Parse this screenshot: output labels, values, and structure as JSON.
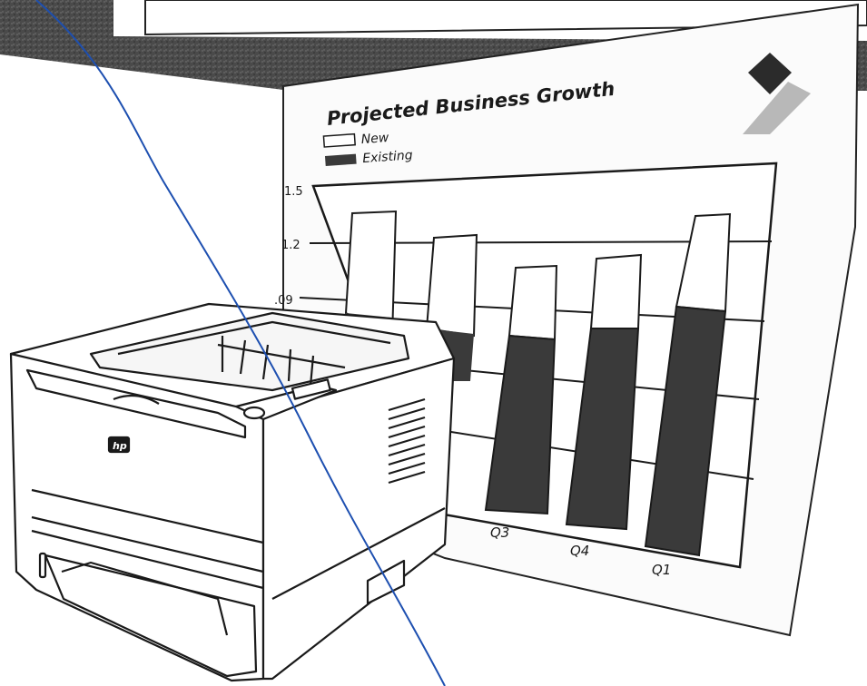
{
  "sheet": {
    "title": "Projected Business Growth",
    "legend": [
      {
        "label": "New",
        "color": "#ffffff"
      },
      {
        "label": "Existing",
        "color": "#3a3a3a"
      }
    ]
  },
  "chart_data": {
    "type": "bar",
    "title": "Projected Business Growth",
    "stacked": true,
    "y_ticks": [
      "1.5",
      "1.2",
      ".09"
    ],
    "categories_visible": [
      "Q3",
      "Q4",
      "Q1"
    ],
    "series": [
      {
        "name": "Existing",
        "color": "#3a3a3a"
      },
      {
        "name": "New",
        "color": "#ffffff"
      }
    ],
    "grid": true,
    "legend_position": "top-left"
  },
  "printer": {
    "logo_text": "hp"
  },
  "colors": {
    "annotation_line": "#1d4fb0",
    "dark_band": "#3a3a3a",
    "ink": "#1a1a1a",
    "logo_diamond": "#2b2b2b",
    "logo_grey": "#b8b8b8"
  }
}
